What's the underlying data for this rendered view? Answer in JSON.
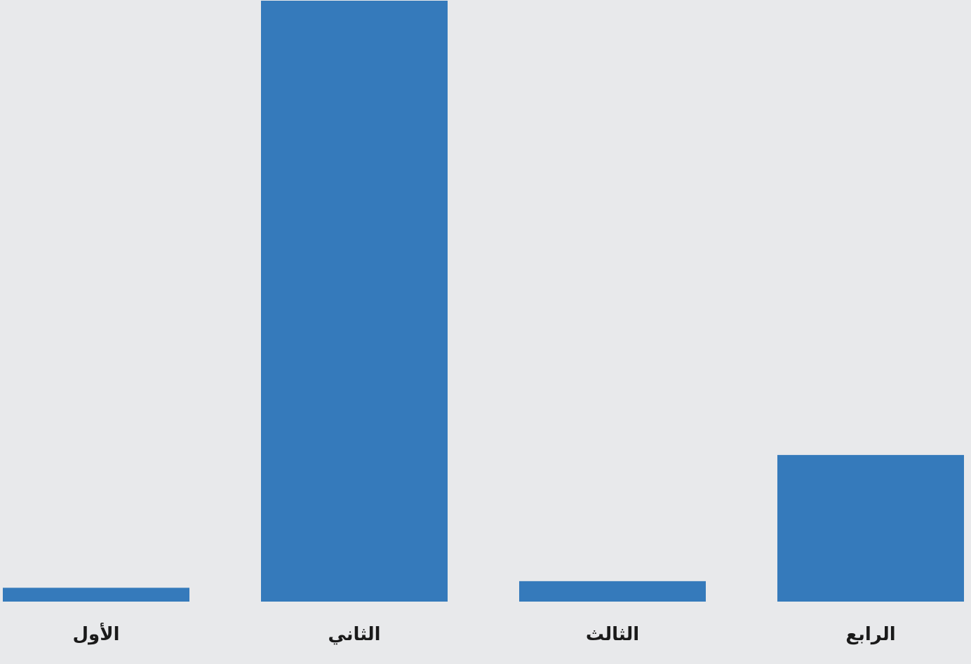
{
  "chart_data": {
    "type": "bar",
    "categories": [
      "الأول",
      "الثاني",
      "الثالث",
      "الرابع"
    ],
    "values": [
      2.3,
      100,
      3.4,
      24.4
    ],
    "ylim": [
      0,
      100
    ],
    "grid": false,
    "legend": "none",
    "bar_color": "#357abb",
    "background_color": "#e8e9eb"
  }
}
